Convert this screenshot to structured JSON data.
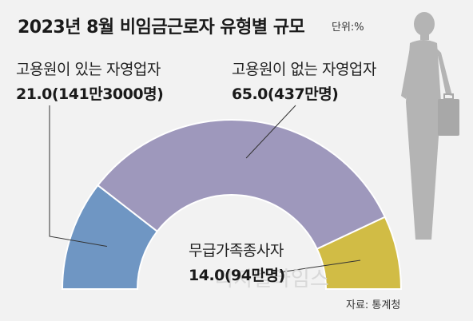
{
  "title": "2023년 8월 비임금근로자 유형별 규모",
  "unit": "단위:%",
  "source": "자료: 통계청",
  "watermark": "디지털타임스",
  "chart_data": {
    "type": "pie",
    "title": "2023년 8월 비임금근로자 유형별 규모",
    "unit": "%",
    "categories": [
      "고용원이 있는 자영업자",
      "고용원이 없는 자영업자",
      "무급가족종사자"
    ],
    "values": [
      21.0,
      65.0,
      14.0
    ],
    "counts": [
      "141만3000명",
      "437만명",
      "94만명"
    ],
    "value_labels": [
      "21.0(141만3000명)",
      "65.0(437만명)",
      "14.0(94만명)"
    ],
    "colors": [
      "#6f96c3",
      "#9e98bc",
      "#d1bc45"
    ]
  }
}
